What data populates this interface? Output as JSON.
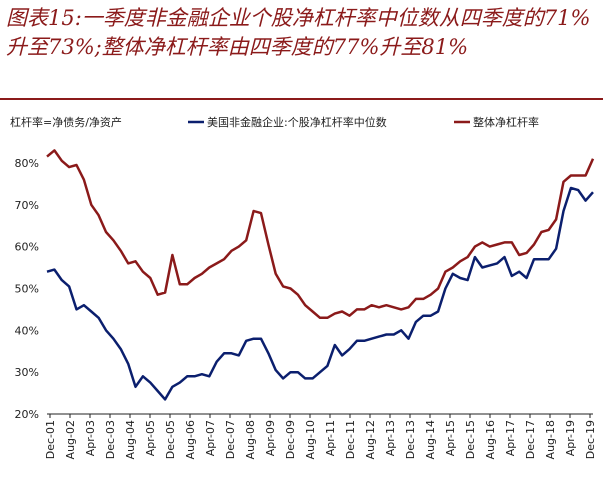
{
  "title": "图表15:一季度非金融企业个股净杠杆率中位数从四季度的71%升至73%;整体净杠杆率由四季度的77%升至81%",
  "chart_data": {
    "type": "line",
    "note_label": "杠杆率=净债务/净资产",
    "ylim": [
      0.2,
      0.85
    ],
    "yticks": [
      "20%",
      "30%",
      "40%",
      "50%",
      "60%",
      "70%",
      "80%"
    ],
    "x_tick_labels": [
      "Dec-01",
      "Aug-02",
      "Apr-03",
      "Dec-03",
      "Aug-04",
      "Apr-05",
      "Dec-05",
      "Aug-06",
      "Apr-07",
      "Dec-07",
      "Aug-08",
      "Apr-09",
      "Dec-09",
      "Aug-10",
      "Apr-11",
      "Dec-11",
      "Aug-12",
      "Apr-13",
      "Dec-13",
      "Aug-14",
      "Apr-15",
      "Dec-15",
      "Aug-16",
      "Apr-17",
      "Dec-17",
      "Aug-18",
      "Apr-19",
      "Dec-19"
    ],
    "series": [
      {
        "name": "美国非金融企业:个股净杠杆率中位数",
        "color": "#0b1f6e",
        "values": [
          0.54,
          0.545,
          0.52,
          0.505,
          0.45,
          0.46,
          0.445,
          0.43,
          0.4,
          0.38,
          0.355,
          0.32,
          0.265,
          0.29,
          0.275,
          0.255,
          0.235,
          0.265,
          0.275,
          0.29,
          0.29,
          0.295,
          0.29,
          0.325,
          0.345,
          0.345,
          0.34,
          0.375,
          0.38,
          0.38,
          0.345,
          0.305,
          0.285,
          0.3,
          0.3,
          0.285,
          0.285,
          0.3,
          0.315,
          0.365,
          0.34,
          0.355,
          0.375,
          0.375,
          0.38,
          0.385,
          0.39,
          0.39,
          0.4,
          0.38,
          0.42,
          0.435,
          0.435,
          0.445,
          0.5,
          0.535,
          0.525,
          0.52,
          0.575,
          0.55,
          0.555,
          0.56,
          0.575,
          0.53,
          0.54,
          0.525,
          0.57,
          0.57,
          0.57,
          0.595,
          0.685,
          0.74,
          0.735,
          0.71,
          0.73
        ]
      },
      {
        "name": "整体净杠杆率",
        "color": "#8b1a1a",
        "values": [
          0.815,
          0.83,
          0.805,
          0.79,
          0.795,
          0.76,
          0.7,
          0.675,
          0.635,
          0.615,
          0.59,
          0.56,
          0.565,
          0.54,
          0.525,
          0.485,
          0.49,
          0.58,
          0.51,
          0.51,
          0.525,
          0.535,
          0.55,
          0.56,
          0.57,
          0.59,
          0.6,
          0.615,
          0.685,
          0.68,
          0.605,
          0.535,
          0.505,
          0.5,
          0.485,
          0.46,
          0.445,
          0.43,
          0.43,
          0.44,
          0.445,
          0.435,
          0.45,
          0.45,
          0.46,
          0.455,
          0.46,
          0.455,
          0.45,
          0.455,
          0.475,
          0.475,
          0.485,
          0.5,
          0.54,
          0.55,
          0.565,
          0.575,
          0.6,
          0.61,
          0.6,
          0.605,
          0.61,
          0.61,
          0.58,
          0.585,
          0.605,
          0.635,
          0.64,
          0.665,
          0.755,
          0.77,
          0.77,
          0.77,
          0.81
        ]
      }
    ]
  }
}
